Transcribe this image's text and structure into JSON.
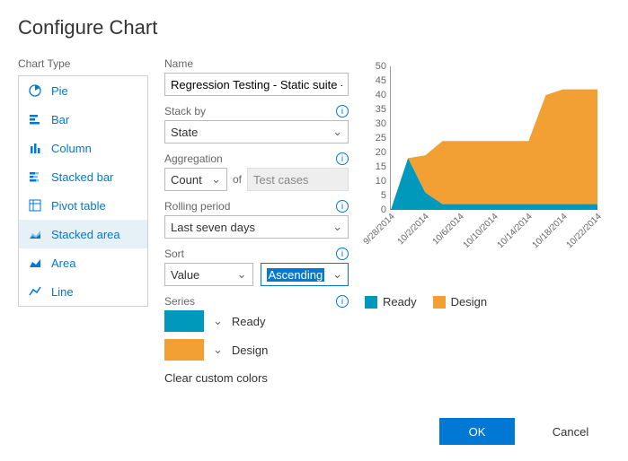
{
  "title": "Configure Chart",
  "chartTypeLabel": "Chart Type",
  "chartTypes": [
    {
      "label": "Pie",
      "icon": "pie"
    },
    {
      "label": "Bar",
      "icon": "bar"
    },
    {
      "label": "Column",
      "icon": "column"
    },
    {
      "label": "Stacked bar",
      "icon": "stackedbar"
    },
    {
      "label": "Pivot table",
      "icon": "pivot"
    },
    {
      "label": "Stacked area",
      "icon": "stackedarea",
      "selected": true
    },
    {
      "label": "Area",
      "icon": "area"
    },
    {
      "label": "Line",
      "icon": "line"
    }
  ],
  "fields": {
    "nameLabel": "Name",
    "nameValue": "Regression Testing - Static suite - Ch",
    "stackByLabel": "Stack by",
    "stackByValue": "State",
    "aggregationLabel": "Aggregation",
    "aggregationValue": "Count",
    "aggregationOf": "of",
    "aggregationTarget": "Test cases",
    "rollingLabel": "Rolling period",
    "rollingValue": "Last seven days",
    "sortLabel": "Sort",
    "sortField": "Value",
    "sortDir": "Ascending",
    "seriesLabel": "Series",
    "clearColors": "Clear custom colors"
  },
  "series": [
    {
      "label": "Ready",
      "color": "#0099bc"
    },
    {
      "label": "Design",
      "color": "#f2a033"
    }
  ],
  "chart": {
    "type": "stacked-area",
    "background": "#ffffff",
    "yAxis": {
      "min": 0,
      "max": 50,
      "step": 5,
      "ticks": [
        0,
        5,
        10,
        15,
        20,
        25,
        30,
        35,
        40,
        45,
        50
      ]
    },
    "xLabels": [
      "9/28/2014",
      "10/2/2014",
      "10/6/2014",
      "10/10/2014",
      "10/14/2014",
      "10/18/2014",
      "10/22/2014"
    ],
    "seriesData": {
      "Ready": [
        0,
        18,
        6,
        2,
        2,
        2,
        2,
        2,
        2,
        2,
        2,
        2,
        2
      ],
      "Design": [
        0,
        0,
        13,
        22,
        22,
        22,
        22,
        22,
        22,
        38,
        40,
        40,
        40
      ]
    },
    "colors": {
      "Ready": "#0099bc",
      "Design": "#f2a033"
    },
    "legend": [
      "Ready",
      "Design"
    ]
  },
  "buttons": {
    "ok": "OK",
    "cancel": "Cancel"
  },
  "colors": {
    "accent": "#0078d4"
  }
}
